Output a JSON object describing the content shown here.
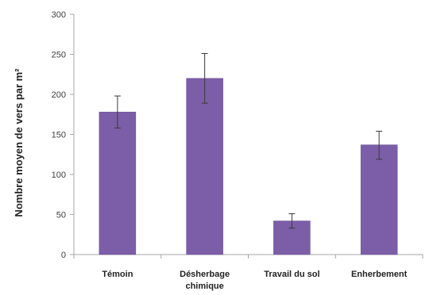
{
  "chart_data": {
    "type": "bar",
    "title": "",
    "xlabel": "",
    "ylabel": "Nombre moyen de vers par m²",
    "categories": [
      "Témoin",
      "Désherbage chimique",
      "Travail du sol",
      "Enherbement"
    ],
    "category_label_lines": [
      [
        "Témoin"
      ],
      [
        "Désherbage",
        "chimique"
      ],
      [
        "Travail du sol"
      ],
      [
        "Enherbement"
      ]
    ],
    "values": [
      178,
      220,
      42,
      137
    ],
    "error_low": [
      158,
      189,
      33,
      119
    ],
    "error_high": [
      198,
      251,
      51,
      154
    ],
    "ylim": [
      0,
      300
    ],
    "yticks": [
      0,
      50,
      100,
      150,
      200,
      250,
      300
    ],
    "ytick_labels": [
      "0",
      "50",
      "100",
      "150",
      "200",
      "250",
      "300"
    ],
    "grid": false,
    "legend": "none",
    "colors": {
      "bar": "#7b5ea7",
      "bar_edge": "#6a4f94",
      "axis": "#a6a6a6",
      "error_bar": "#3a3a3a"
    }
  }
}
